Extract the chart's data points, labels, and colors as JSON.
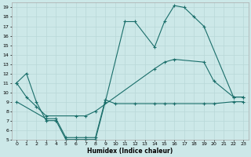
{
  "xlabel": "Humidex (Indice chaleur)",
  "bg_color": "#cce8e8",
  "line_color": "#1a6e6a",
  "grid_color": "#b8d8d8",
  "xlim": [
    -0.5,
    23.5
  ],
  "ylim": [
    5,
    19.5
  ],
  "xticks": [
    0,
    1,
    2,
    3,
    4,
    5,
    6,
    7,
    8,
    9,
    10,
    11,
    12,
    13,
    14,
    15,
    16,
    17,
    18,
    19,
    20,
    21,
    22,
    23
  ],
  "yticks": [
    5,
    6,
    7,
    8,
    9,
    10,
    11,
    12,
    13,
    14,
    15,
    16,
    17,
    18,
    19
  ],
  "line1_x": [
    0,
    1,
    2,
    3,
    4,
    5,
    6,
    7,
    8,
    9,
    11,
    12,
    14,
    15,
    16,
    17,
    18,
    19,
    22,
    23
  ],
  "line1_y": [
    11,
    12,
    9,
    7,
    7,
    5,
    5,
    5,
    5,
    9,
    17.5,
    17.5,
    14.8,
    17.5,
    19.2,
    19,
    18,
    17,
    9.5,
    9.5
  ],
  "line2_x": [
    0,
    1,
    2,
    3,
    6,
    7,
    8,
    14,
    15,
    16,
    19,
    20,
    22,
    23
  ],
  "line2_y": [
    11,
    9.5,
    8.5,
    7.5,
    7.5,
    7.5,
    8,
    12.5,
    13.2,
    13.5,
    13.2,
    11.2,
    9.5,
    9.5
  ],
  "line3_x": [
    0,
    3,
    4,
    5,
    6,
    7,
    8,
    9,
    10,
    12,
    14,
    15,
    16,
    19,
    20,
    22,
    23
  ],
  "line3_y": [
    9,
    7.2,
    7.2,
    5.2,
    5.2,
    5.2,
    5.2,
    9.2,
    8.8,
    8.8,
    8.8,
    8.8,
    8.8,
    8.8,
    8.8,
    9.0,
    9.0
  ]
}
